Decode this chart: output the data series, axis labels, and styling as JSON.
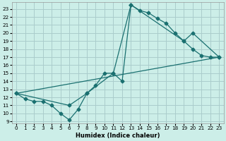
{
  "xlabel": "Humidex (Indice chaleur)",
  "bg_color": "#cceee8",
  "grid_color": "#aacccc",
  "line_color": "#1a7070",
  "xlim": [
    -0.5,
    23.5
  ],
  "ylim": [
    8.8,
    23.8
  ],
  "xticks": [
    0,
    1,
    2,
    3,
    4,
    5,
    6,
    7,
    8,
    9,
    10,
    11,
    12,
    13,
    14,
    15,
    16,
    17,
    18,
    19,
    20,
    21,
    22,
    23
  ],
  "yticks": [
    9,
    10,
    11,
    12,
    13,
    14,
    15,
    16,
    17,
    18,
    19,
    20,
    21,
    22,
    23
  ],
  "curve1_x": [
    0,
    1,
    2,
    3,
    4,
    5,
    6,
    7,
    8,
    9,
    10,
    11,
    12,
    13,
    14,
    15,
    16,
    17,
    18,
    19,
    20,
    21,
    22,
    23
  ],
  "curve1_y": [
    12.5,
    11.8,
    11.5,
    11.5,
    11.0,
    10.0,
    9.2,
    10.5,
    12.5,
    13.5,
    15.0,
    15.0,
    14.0,
    23.5,
    22.8,
    22.5,
    21.8,
    21.2,
    20.0,
    19.0,
    18.0,
    17.2,
    17.0,
    17.0
  ],
  "curve3_x": [
    0,
    6,
    8,
    11,
    13,
    19,
    20,
    23
  ],
  "curve3_y": [
    12.5,
    11.0,
    12.5,
    15.0,
    23.5,
    19.0,
    20.0,
    17.0
  ],
  "line4_x": [
    0,
    23
  ],
  "line4_y": [
    12.5,
    17.0
  ]
}
